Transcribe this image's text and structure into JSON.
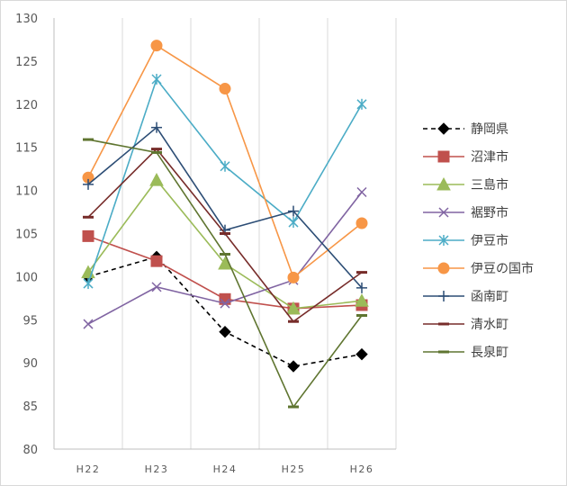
{
  "chart_data": {
    "type": "line",
    "categories": [
      "H22",
      "H23",
      "H24",
      "H25",
      "H26"
    ],
    "ylim": [
      80,
      130
    ],
    "yticks": [
      80,
      85,
      90,
      95,
      100,
      105,
      110,
      115,
      120,
      125,
      130
    ],
    "grid": {
      "vertical": true,
      "horizontal": false
    },
    "legend_position": "right",
    "series": [
      {
        "name": "静岡県",
        "values": [
          100.0,
          102.3,
          93.6,
          89.6,
          91.0
        ],
        "color": "#000000",
        "marker": "diamond",
        "dashed": true
      },
      {
        "name": "沼津市",
        "values": [
          104.7,
          101.8,
          97.4,
          96.3,
          96.7
        ],
        "color": "#c0504d",
        "marker": "square",
        "dashed": false
      },
      {
        "name": "三島市",
        "values": [
          100.5,
          111.2,
          101.5,
          96.3,
          97.2
        ],
        "color": "#9bbb59",
        "marker": "triangle",
        "dashed": false
      },
      {
        "name": "裾野市",
        "values": [
          94.5,
          98.8,
          96.9,
          99.6,
          109.8
        ],
        "color": "#8064a2",
        "marker": "x",
        "dashed": false
      },
      {
        "name": "伊豆市",
        "values": [
          99.2,
          122.9,
          112.8,
          106.3,
          120.0
        ],
        "color": "#4bacc6",
        "marker": "asterisk",
        "dashed": false
      },
      {
        "name": "伊豆の国市",
        "values": [
          111.5,
          126.8,
          121.8,
          99.9,
          106.2
        ],
        "color": "#f79646",
        "marker": "circle",
        "dashed": false
      },
      {
        "name": "函南町",
        "values": [
          110.7,
          117.3,
          105.4,
          107.6,
          98.7
        ],
        "color": "#2c4d75",
        "marker": "plus",
        "dashed": false
      },
      {
        "name": "清水町",
        "values": [
          106.9,
          114.8,
          105.0,
          94.8,
          100.5
        ],
        "color": "#772c2a",
        "marker": "dash",
        "dashed": false
      },
      {
        "name": "長泉町",
        "values": [
          115.9,
          114.4,
          102.6,
          84.9,
          95.5
        ],
        "color": "#5f7530",
        "marker": "dash",
        "dashed": false
      }
    ]
  }
}
